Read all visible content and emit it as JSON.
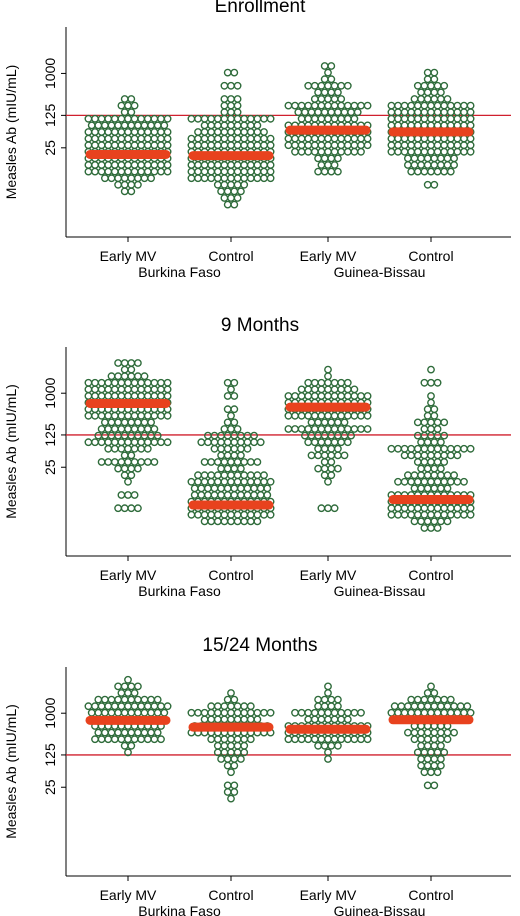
{
  "colors": {
    "point_stroke": "#2e6b3a",
    "median_bar": "#e8421e",
    "threshold_line": "#d0202e",
    "axis": "#000000"
  },
  "chart_data": [
    {
      "type": "scatter",
      "subtype": "beeswarm",
      "title": "Enrollment",
      "ylabel": "Measles Ab (mIU/mL)",
      "y_scale": "log",
      "yticks": [
        25,
        125,
        1000
      ],
      "threshold": 125,
      "grid": false,
      "groups": [
        "Early MV",
        "Control",
        "Early MV",
        "Control"
      ],
      "countries": [
        "Burkina Faso",
        "Guinea-Bissau"
      ],
      "series": [
        {
          "country": "Burkina Faso",
          "group": "Early MV",
          "median": 18,
          "min": 3,
          "max": 330,
          "n": 210
        },
        {
          "country": "Burkina Faso",
          "group": "Control",
          "median": 17,
          "min": 1.6,
          "max": 1000,
          "n": 200
        },
        {
          "country": "Guinea-Bissau",
          "group": "Early MV",
          "median": 60,
          "min": 8,
          "max": 1500,
          "n": 170
        },
        {
          "country": "Guinea-Bissau",
          "group": "Control",
          "median": 55,
          "min": 4,
          "max": 1000,
          "n": 210
        }
      ]
    },
    {
      "type": "scatter",
      "subtype": "beeswarm",
      "title": "9 Months",
      "ylabel": "Measles Ab (mIU/mL)",
      "y_scale": "log",
      "yticks": [
        25,
        125,
        1000
      ],
      "threshold": 125,
      "grid": false,
      "groups": [
        "Early MV",
        "Control",
        "Early MV",
        "Control"
      ],
      "countries": [
        "Burkina Faso",
        "Guinea-Bissau"
      ],
      "series": [
        {
          "country": "Burkina Faso",
          "group": "Early MV",
          "median": 600,
          "min": 3,
          "max": 4800,
          "n": 210
        },
        {
          "country": "Burkina Faso",
          "group": "Control",
          "median": 3.8,
          "min": 1.6,
          "max": 1800,
          "n": 210
        },
        {
          "country": "Guinea-Bissau",
          "group": "Early MV",
          "median": 500,
          "min": 3.6,
          "max": 2800,
          "n": 180
        },
        {
          "country": "Guinea-Bissau",
          "group": "Control",
          "median": 5,
          "min": 1.2,
          "max": 2800,
          "n": 190
        }
      ]
    },
    {
      "type": "scatter",
      "subtype": "beeswarm",
      "title": "15/24 Months",
      "ylabel": "Measles Ab (mIU/mL)",
      "y_scale": "log",
      "yticks": [
        25,
        125,
        1000
      ],
      "threshold": 125,
      "grid": false,
      "groups": [
        "Early MV",
        "Control",
        "Early MV",
        "Control"
      ],
      "countries": [
        "Burkina Faso",
        "Guinea-Bissau"
      ],
      "series": [
        {
          "country": "Burkina Faso",
          "group": "Early MV",
          "median": 700,
          "min": 150,
          "max": 6000,
          "n": 90
        },
        {
          "country": "Burkina Faso",
          "group": "Control",
          "median": 500,
          "min": 13,
          "max": 3000,
          "n": 90
        },
        {
          "country": "Guinea-Bissau",
          "group": "Early MV",
          "median": 450,
          "min": 100,
          "max": 3500,
          "n": 90
        },
        {
          "country": "Guinea-Bissau",
          "group": "Control",
          "median": 720,
          "min": 30,
          "max": 4000,
          "n": 90
        }
      ]
    }
  ]
}
